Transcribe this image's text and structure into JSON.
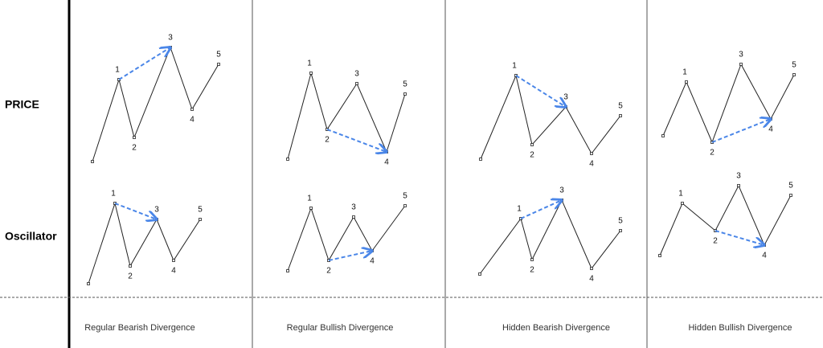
{
  "rows": [
    "PRICE",
    "Oscillator"
  ],
  "columns": [
    {
      "caption": "Regular Bearish Divergence",
      "price_labels": [
        "1",
        "2",
        "3",
        "4",
        "5"
      ],
      "oscillator_labels": [
        "1",
        "2",
        "3",
        "4",
        "5"
      ]
    },
    {
      "caption": "Regular Bullish Divergence",
      "price_labels": [
        "1",
        "2",
        "3",
        "4",
        "5"
      ],
      "oscillator_labels": [
        "1",
        "2",
        "3",
        "4",
        "5"
      ]
    },
    {
      "caption": "Hidden Bearish Divergence",
      "price_labels": [
        "1",
        "2",
        "3",
        "4",
        "5"
      ],
      "oscillator_labels": [
        "1",
        "2",
        "3",
        "4",
        "5"
      ]
    },
    {
      "caption": "Hidden Bullish Divergence",
      "price_labels": [
        "1",
        "2",
        "3",
        "4",
        "5"
      ],
      "oscillator_labels": [
        "1",
        "2",
        "3",
        "4",
        "5"
      ]
    }
  ]
}
